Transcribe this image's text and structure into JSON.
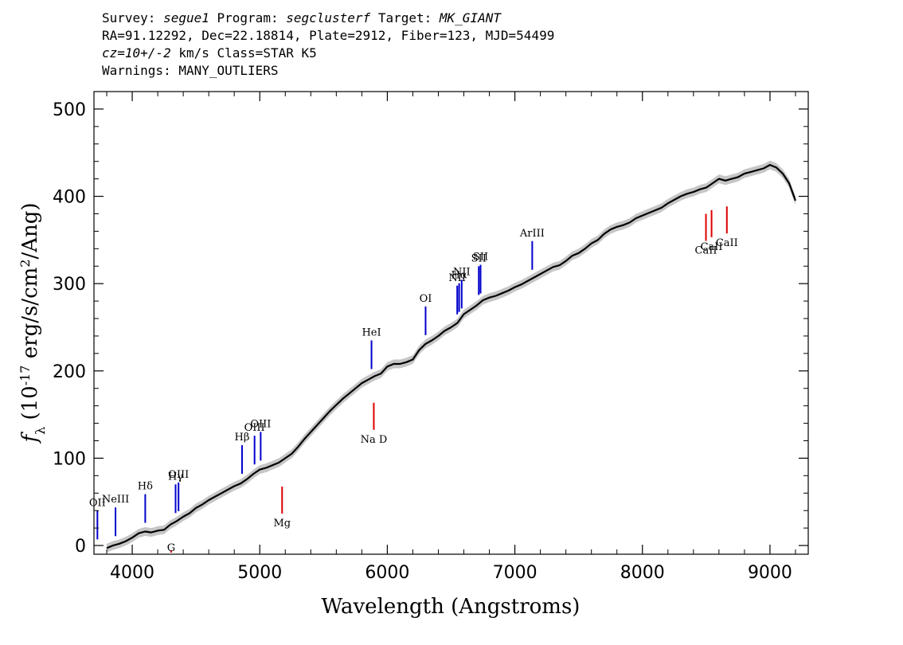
{
  "header": {
    "survey_label": "Survey:",
    "survey": "segue1",
    "program_label": "Program:",
    "program": "segclusterf",
    "target_label": "Target:",
    "target": "MK_GIANT",
    "line2": "RA=91.12292, Dec=22.18814, Plate=2912, Fiber=123, MJD=54499",
    "cz": "cz=10+/-2",
    "cz_units": "km/s",
    "class_text": "Class=STAR K5",
    "warnings": "Warnings: MANY_OUTLIERS"
  },
  "chart_data": {
    "type": "line",
    "xlabel": "Wavelength (Angstroms)",
    "ylabel": "f_λ (10^-17 erg/s/cm^2/Ang)",
    "xlim": [
      3700,
      9300
    ],
    "ylim": [
      -10,
      520
    ],
    "xticks": [
      4000,
      5000,
      6000,
      7000,
      8000,
      9000
    ],
    "yticks": [
      0,
      100,
      200,
      300,
      400,
      500
    ],
    "colors": {
      "spectrum": "#000000",
      "error": "#a0a0a0",
      "emission": "#0000cc",
      "absorption": "#dd0000"
    },
    "series": [
      {
        "x": [
          3800,
          3850,
          3900,
          3950,
          4000,
          4050,
          4100,
          4150,
          4200,
          4250,
          4300,
          4350,
          4400,
          4450,
          4500,
          4550,
          4600,
          4650,
          4700,
          4750,
          4800,
          4850,
          4900,
          4950,
          5000,
          5050,
          5100,
          5150,
          5200,
          5250,
          5300,
          5350,
          5400,
          5450,
          5500,
          5550,
          5600,
          5650,
          5700,
          5750,
          5800,
          5850,
          5900,
          5950,
          6000,
          6050,
          6100,
          6150,
          6200,
          6250,
          6300,
          6350,
          6400,
          6450,
          6500,
          6550,
          6600,
          6650,
          6700,
          6750,
          6800,
          6850,
          6900,
          6950,
          7000,
          7050,
          7100,
          7150,
          7200,
          7250,
          7300,
          7350,
          7400,
          7450,
          7500,
          7550,
          7600,
          7650,
          7700,
          7750,
          7800,
          7850,
          7900,
          7950,
          8000,
          8050,
          8100,
          8150,
          8200,
          8250,
          8300,
          8350,
          8400,
          8450,
          8500,
          8550,
          8600,
          8650,
          8700,
          8750,
          8800,
          8850,
          8900,
          8950,
          9000,
          9050,
          9100,
          9150,
          9200
        ],
        "y": [
          -3,
          0,
          2,
          5,
          9,
          14,
          16,
          15,
          17,
          18,
          24,
          28,
          33,
          37,
          43,
          47,
          52,
          56,
          60,
          64,
          68,
          71,
          76,
          82,
          87,
          89,
          92,
          95,
          100,
          105,
          113,
          122,
          130,
          138,
          146,
          154,
          161,
          168,
          174,
          180,
          186,
          190,
          194,
          197,
          205,
          208,
          208,
          210,
          213,
          224,
          231,
          235,
          240,
          246,
          250,
          255,
          265,
          270,
          275,
          281,
          284,
          286,
          289,
          292,
          296,
          299,
          303,
          307,
          311,
          315,
          319,
          321,
          326,
          332,
          335,
          340,
          346,
          350,
          357,
          362,
          365,
          367,
          370,
          375,
          378,
          381,
          384,
          387,
          392,
          396,
          400,
          403,
          405,
          408,
          410,
          415,
          420,
          418,
          420,
          422,
          426,
          428,
          430,
          432,
          436,
          433,
          426,
          415,
          395
        ]
      }
    ],
    "emission_lines": [
      {
        "label": "OII",
        "x": 3727
      },
      {
        "label": "NeIII",
        "x": 3869
      },
      {
        "label": "Hδ",
        "x": 4102
      },
      {
        "label": "Hγ",
        "x": 4340
      },
      {
        "label": "OIII",
        "x": 4363
      },
      {
        "label": "Hβ",
        "x": 4861
      },
      {
        "label": "OIII",
        "x": 4959
      },
      {
        "label": "OIII",
        "x": 5007
      },
      {
        "label": "HeI",
        "x": 5876
      },
      {
        "label": "OI",
        "x": 6300
      },
      {
        "label": "NII",
        "x": 6548
      },
      {
        "label": "Hα",
        "x": 6563
      },
      {
        "label": "NII",
        "x": 6583
      },
      {
        "label": "SII",
        "x": 6717
      },
      {
        "label": "SII",
        "x": 6731
      },
      {
        "label": "ArIII",
        "x": 7136
      }
    ],
    "absorption_lines": [
      {
        "label": "G",
        "x": 4305
      },
      {
        "label": "Mg",
        "x": 5175
      },
      {
        "label": "Na D",
        "x": 5894
      },
      {
        "label": "CaII",
        "x": 8498
      },
      {
        "label": "CaII",
        "x": 8542
      },
      {
        "label": "CaII",
        "x": 8662
      }
    ]
  }
}
